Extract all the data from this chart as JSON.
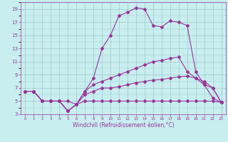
{
  "xlabel": "Windchill (Refroidissement éolien,°C)",
  "xlim": [
    -0.5,
    23.5
  ],
  "ylim": [
    3,
    20
  ],
  "xticks": [
    0,
    1,
    2,
    3,
    4,
    5,
    6,
    7,
    8,
    9,
    10,
    11,
    12,
    13,
    14,
    15,
    16,
    17,
    18,
    19,
    20,
    21,
    22,
    23
  ],
  "yticks": [
    3,
    5,
    7,
    9,
    11,
    13,
    15,
    17,
    19
  ],
  "bg_color": "#c8eef0",
  "grid_color": "#a0c8c8",
  "line_color": "#993399",
  "line1_x": [
    0,
    1,
    2,
    3,
    4,
    5,
    6,
    7,
    8,
    9,
    10,
    11,
    12,
    13,
    14,
    15,
    16,
    17,
    18,
    19,
    20,
    21,
    22,
    23
  ],
  "line1_y": [
    6.5,
    6.5,
    5.0,
    5.0,
    5.0,
    5.0,
    4.5,
    6.5,
    8.5,
    13.0,
    15.0,
    18.0,
    18.5,
    19.2,
    19.0,
    16.5,
    16.3,
    17.2,
    17.0,
    16.5,
    9.5,
    7.5,
    5.5,
    4.8
  ],
  "line2_x": [
    0,
    1,
    2,
    3,
    4,
    5,
    6,
    7,
    8,
    9,
    10,
    11,
    12,
    13,
    14,
    15,
    16,
    17,
    18,
    19,
    20,
    21,
    22,
    23
  ],
  "line2_y": [
    6.5,
    6.5,
    5.0,
    5.0,
    5.0,
    3.5,
    4.5,
    6.5,
    7.5,
    8.0,
    8.5,
    9.0,
    9.5,
    10.0,
    10.5,
    11.0,
    11.2,
    11.5,
    11.7,
    9.5,
    8.5,
    8.0,
    7.0,
    4.8
  ],
  "line3_x": [
    0,
    1,
    2,
    3,
    4,
    5,
    6,
    7,
    8,
    9,
    10,
    11,
    12,
    13,
    14,
    15,
    16,
    17,
    18,
    19,
    20,
    21,
    22,
    23
  ],
  "line3_y": [
    6.5,
    6.5,
    5.0,
    5.0,
    5.0,
    3.5,
    4.5,
    6.0,
    6.5,
    7.0,
    7.0,
    7.2,
    7.5,
    7.8,
    8.0,
    8.2,
    8.3,
    8.5,
    8.7,
    8.8,
    8.5,
    7.5,
    7.0,
    4.8
  ],
  "line4_x": [
    0,
    1,
    2,
    3,
    4,
    5,
    6,
    7,
    8,
    9,
    10,
    11,
    12,
    13,
    14,
    15,
    16,
    17,
    18,
    19,
    20,
    21,
    22,
    23
  ],
  "line4_y": [
    6.5,
    6.5,
    5.0,
    5.0,
    5.0,
    3.5,
    4.5,
    5.0,
    5.0,
    5.0,
    5.0,
    5.0,
    5.0,
    5.0,
    5.0,
    5.0,
    5.0,
    5.0,
    5.0,
    5.0,
    5.0,
    5.0,
    5.0,
    4.8
  ],
  "xtick_fontsize": 4.0,
  "ytick_fontsize": 5.0,
  "xlabel_fontsize": 5.5
}
